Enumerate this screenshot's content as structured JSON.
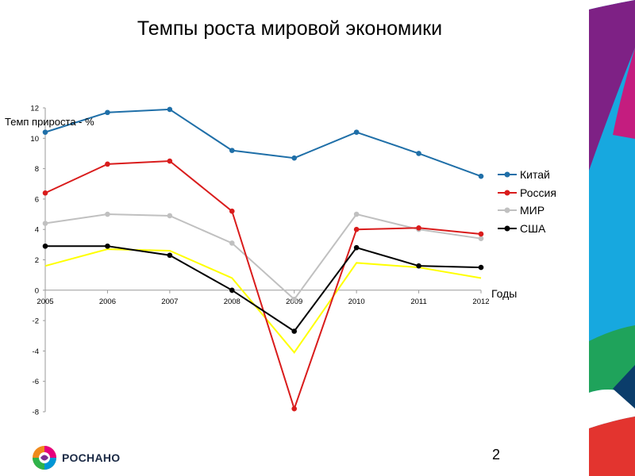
{
  "slide": {
    "title": "Темпы роста мировой экономики",
    "page_number": "2"
  },
  "logo": {
    "text": "РОСНАНО"
  },
  "chart_data": {
    "type": "line",
    "title": "Темпы роста мировой экономики",
    "ylabel": "Темп прироста - %",
    "xlabel": "Годы",
    "categories": [
      "2005",
      "2006",
      "2007",
      "2008",
      "2009",
      "2010",
      "2011",
      "2012"
    ],
    "ylim": [
      -8,
      12
    ],
    "yticks": [
      -8,
      -6,
      -4,
      -2,
      0,
      2,
      4,
      6,
      8,
      10,
      12
    ],
    "legend_position": "right",
    "series": [
      {
        "name": "Китай",
        "color": "#1f6fa8",
        "marker": true,
        "values": [
          10.4,
          11.7,
          11.9,
          9.2,
          8.7,
          10.4,
          9.0,
          7.5
        ]
      },
      {
        "name": "Россия",
        "color": "#d91c1c",
        "marker": true,
        "values": [
          6.4,
          8.3,
          8.5,
          5.2,
          -7.8,
          4.0,
          4.1,
          3.7
        ]
      },
      {
        "name": "МИР",
        "color": "#c0c0c0",
        "marker": true,
        "values": [
          4.4,
          5.0,
          4.9,
          3.1,
          -0.6,
          5.0,
          4.0,
          3.4
        ]
      },
      {
        "name": "США",
        "color": "#000000",
        "marker": true,
        "values": [
          2.9,
          2.9,
          2.3,
          0.0,
          -2.7,
          2.8,
          1.6,
          1.5
        ]
      },
      {
        "color": "#ffff00",
        "marker": false,
        "values": [
          1.6,
          2.7,
          2.6,
          0.8,
          -4.1,
          1.8,
          1.5,
          0.8
        ]
      }
    ]
  }
}
